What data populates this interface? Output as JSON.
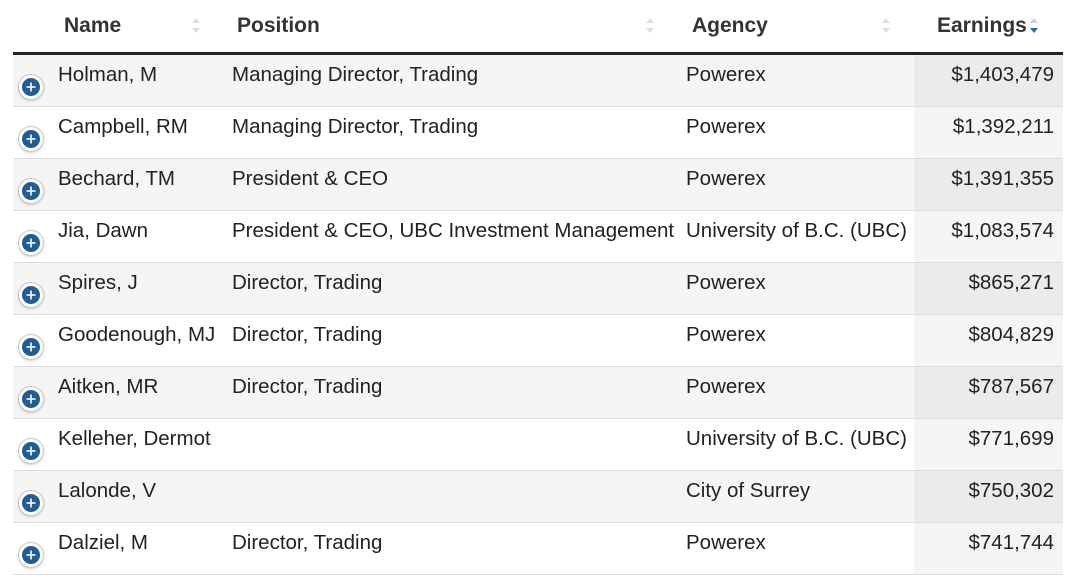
{
  "table": {
    "columns": [
      {
        "label": "Name",
        "sort": "none"
      },
      {
        "label": "Position",
        "sort": "none"
      },
      {
        "label": "Agency",
        "sort": "none"
      },
      {
        "label": "Earnings",
        "sort": "descending"
      }
    ],
    "expand_icon": "plus-circle-icon",
    "colors": {
      "header_rule": "#222222",
      "expand_button": "#1f5d94",
      "sort_active": "#2b6aa0",
      "earnings_column_bg": "#ebebeb"
    },
    "rows": [
      {
        "name": "Holman, M",
        "position": "Managing Director, Trading",
        "agency": "Powerex",
        "earnings": "$1,403,479"
      },
      {
        "name": "Campbell, RM",
        "position": "Managing Director, Trading",
        "agency": "Powerex",
        "earnings": "$1,392,211"
      },
      {
        "name": "Bechard, TM",
        "position": "President & CEO",
        "agency": "Powerex",
        "earnings": "$1,391,355"
      },
      {
        "name": "Jia, Dawn",
        "position": "President & CEO, UBC Investment Management",
        "agency": "University of B.C. (UBC)",
        "earnings": "$1,083,574"
      },
      {
        "name": "Spires, J",
        "position": "Director, Trading",
        "agency": "Powerex",
        "earnings": "$865,271"
      },
      {
        "name": "Goodenough, MJ",
        "position": "Director, Trading",
        "agency": "Powerex",
        "earnings": "$804,829"
      },
      {
        "name": "Aitken, MR",
        "position": "Director, Trading",
        "agency": "Powerex",
        "earnings": "$787,567"
      },
      {
        "name": "Kelleher, Dermot",
        "position": "",
        "agency": "University of B.C. (UBC)",
        "earnings": "$771,699"
      },
      {
        "name": "Lalonde, V",
        "position": "",
        "agency": "City of Surrey",
        "earnings": "$750,302"
      },
      {
        "name": "Dalziel, M",
        "position": "Director, Trading",
        "agency": "Powerex",
        "earnings": "$741,744"
      }
    ]
  }
}
